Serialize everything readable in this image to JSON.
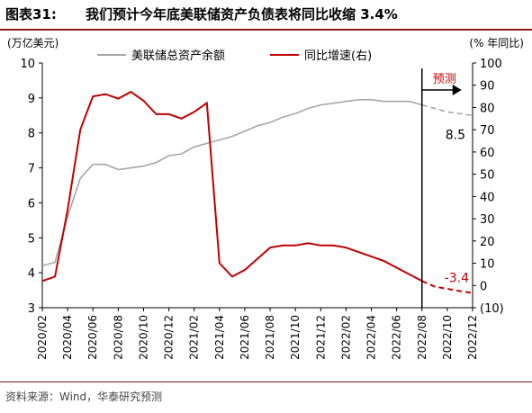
{
  "header": {
    "figure_no": "图表31:",
    "title": "我们预计今年底美联储资产负债表将同比收缩 3.4%"
  },
  "footer": {
    "source": "资料来源：Wind，华泰研究预测"
  },
  "chart_data": {
    "type": "line",
    "left_axis_unit": "(万亿美元)",
    "right_axis_unit": "(% 年同比)",
    "left_ylim": [
      3,
      10
    ],
    "left_ticks": [
      "3",
      "4",
      "5",
      "6",
      "7",
      "8",
      "9",
      "10"
    ],
    "right_ylim": [
      -10,
      100
    ],
    "right_ticks": [
      "(10)",
      "0",
      "10",
      "20",
      "30",
      "40",
      "50",
      "60",
      "70",
      "80",
      "90",
      "100"
    ],
    "x_ticks": [
      "2020/02",
      "2020/04",
      "2020/06",
      "2020/08",
      "2020/10",
      "2020/12",
      "2021/02",
      "2021/04",
      "2021/06",
      "2021/08",
      "2021/10",
      "2021/12",
      "2022/02",
      "2022/04",
      "2022/06",
      "2022/08",
      "2022/10",
      "2022/12"
    ],
    "x": [
      "2020/02",
      "2020/03",
      "2020/04",
      "2020/05",
      "2020/06",
      "2020/07",
      "2020/08",
      "2020/09",
      "2020/10",
      "2020/11",
      "2020/12",
      "2021/01",
      "2021/02",
      "2021/03",
      "2021/04",
      "2021/05",
      "2021/06",
      "2021/07",
      "2021/08",
      "2021/09",
      "2021/10",
      "2021/11",
      "2021/12",
      "2022/01",
      "2022/02",
      "2022/03",
      "2022/04",
      "2022/05",
      "2022/06",
      "2022/07",
      "2022/08",
      "2022/09",
      "2022/10",
      "2022/11",
      "2022/12"
    ],
    "forecast_start": "2022/08",
    "forecast_label": "预测",
    "grid": false,
    "legend_position": "top",
    "series": [
      {
        "name": "美联储总资产余额",
        "axis": "left",
        "color": "#a6a6a6",
        "values": [
          4.2,
          4.3,
          5.6,
          6.7,
          7.1,
          7.1,
          6.95,
          7.0,
          7.05,
          7.15,
          7.35,
          7.4,
          7.6,
          7.7,
          7.8,
          7.9,
          8.05,
          8.2,
          8.3,
          8.45,
          8.55,
          8.7,
          8.8,
          8.85,
          8.9,
          8.95,
          8.95,
          8.9,
          8.9,
          8.9,
          8.8,
          8.7,
          8.6,
          8.55,
          8.5
        ],
        "forecast_values": [
          null,
          null,
          null,
          null,
          null,
          null,
          null,
          null,
          null,
          null,
          null,
          null,
          null,
          null,
          null,
          null,
          null,
          null,
          null,
          null,
          null,
          null,
          null,
          null,
          null,
          null,
          null,
          null,
          null,
          null,
          8.8,
          8.7,
          8.6,
          8.55,
          8.5
        ],
        "end_label": "8.5"
      },
      {
        "name": "同比增速(右)",
        "axis": "right",
        "color": "#c00000",
        "values": [
          2,
          4,
          34,
          70,
          85,
          86,
          84,
          87,
          83,
          77,
          77,
          75,
          78,
          82,
          10,
          4,
          7,
          12,
          17,
          18,
          18,
          19,
          18,
          18,
          17,
          15,
          13,
          11,
          8,
          5,
          2,
          -0.5,
          -1.5,
          -2.5,
          -3.4
        ],
        "end_label": "-3.4"
      }
    ]
  }
}
